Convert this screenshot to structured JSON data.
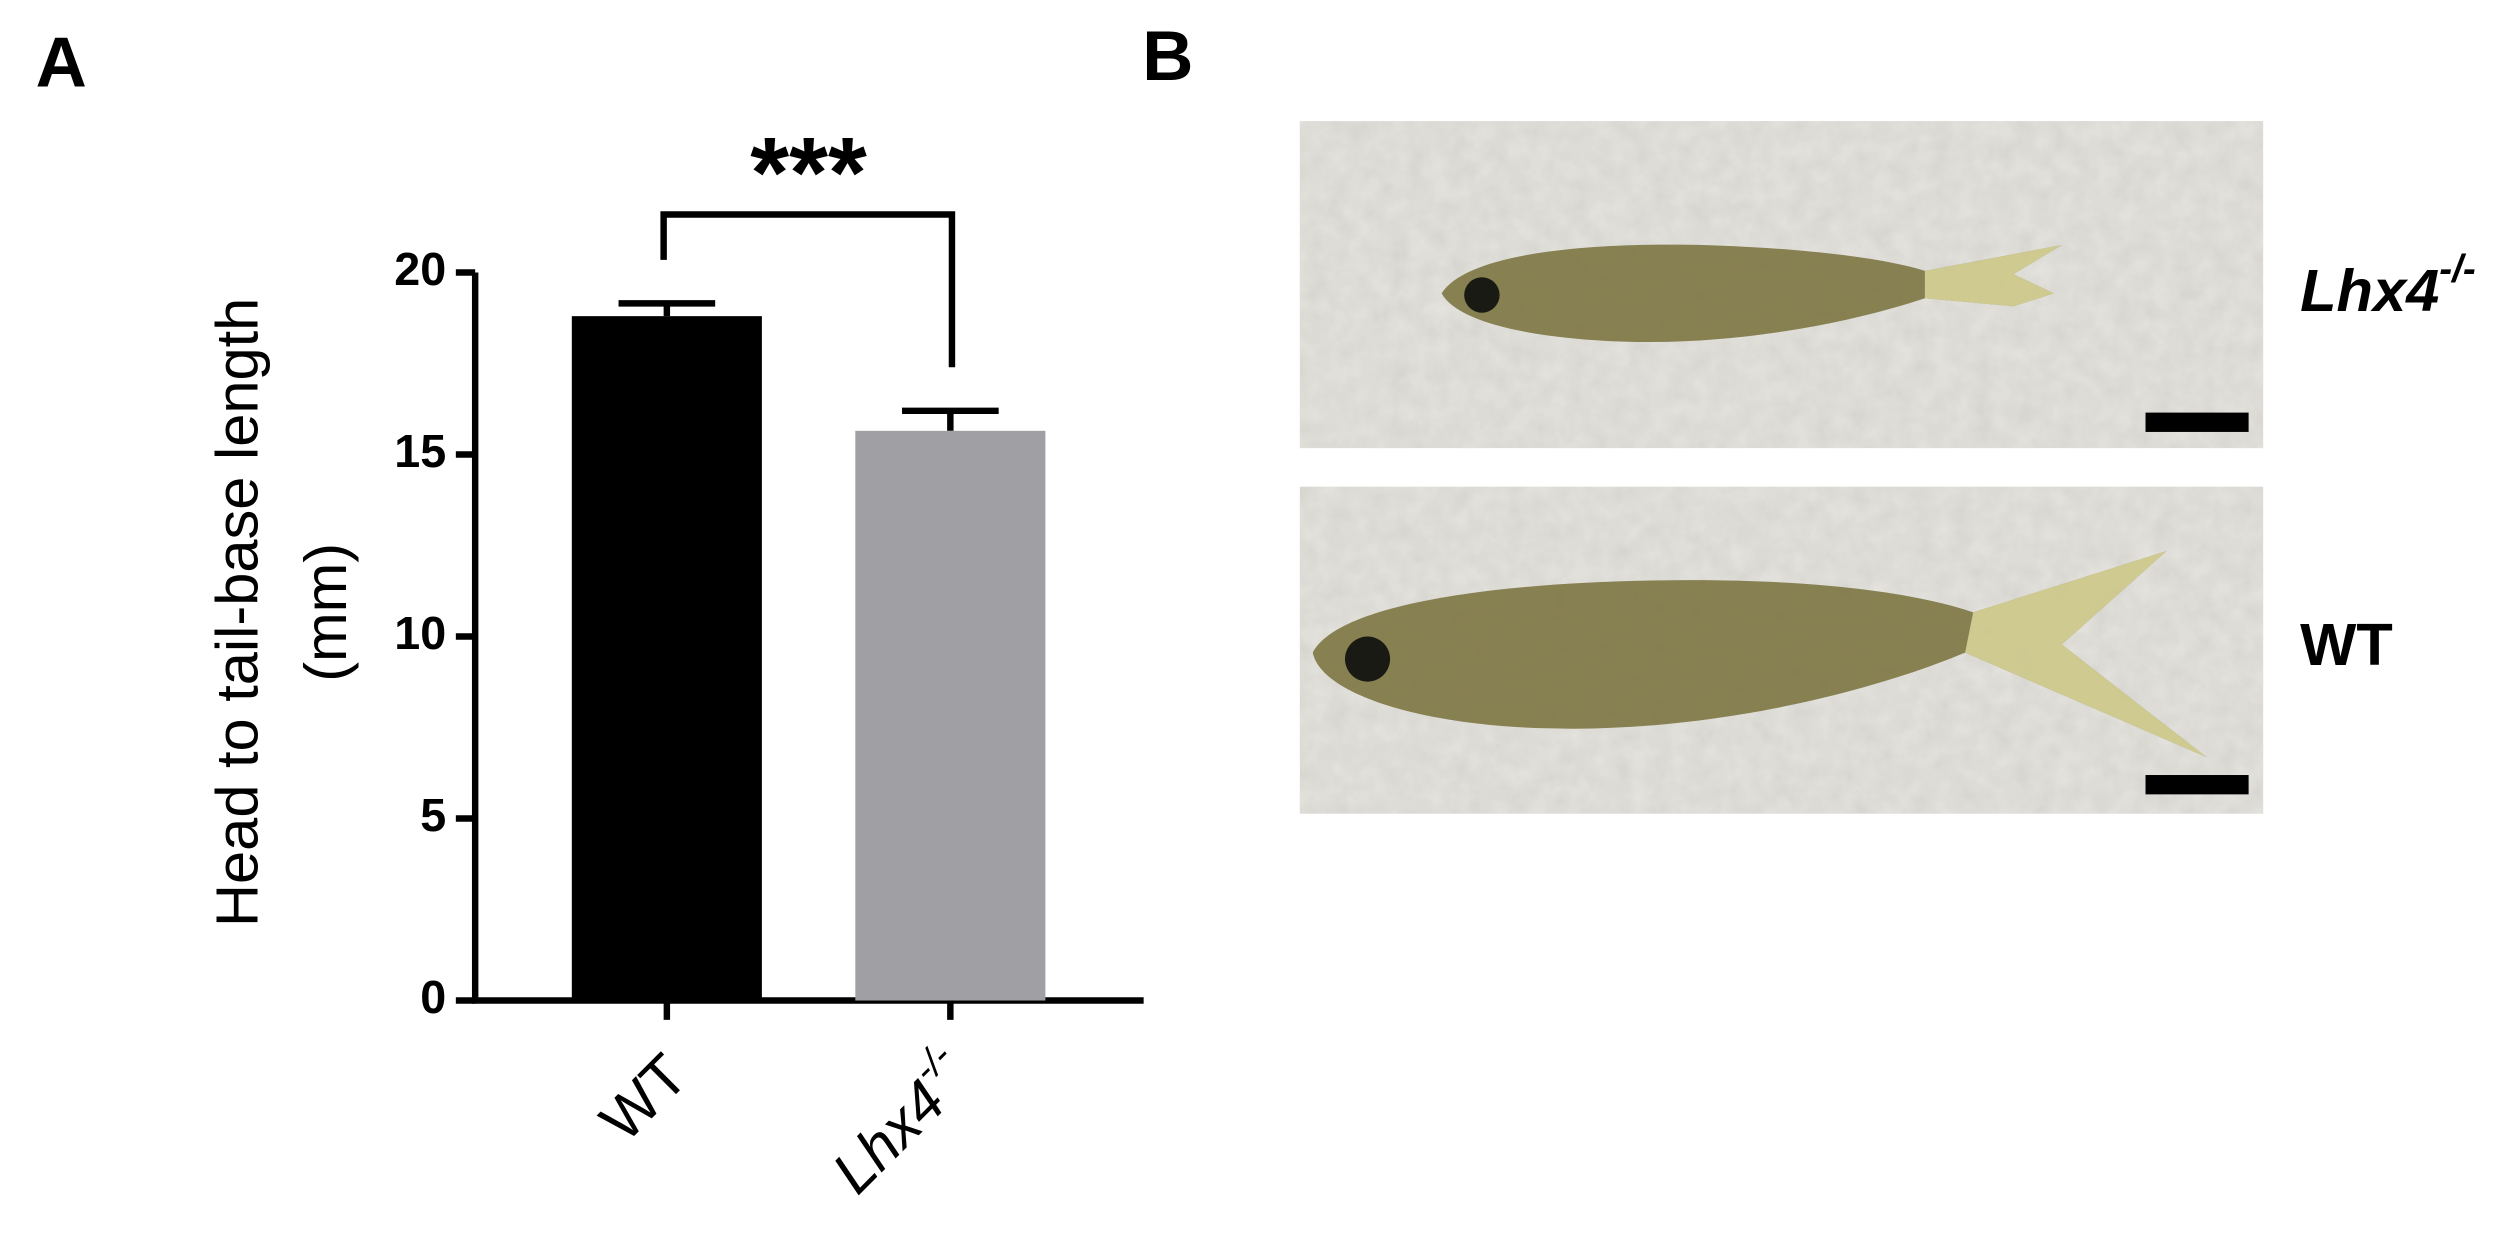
{
  "panel_labels": [
    "A",
    "B"
  ],
  "chart_data": {
    "type": "bar",
    "categories": [
      "WT",
      "Lhx4-/-"
    ],
    "values": [
      18.8,
      15.65
    ],
    "errors": [
      0.35,
      0.55
    ],
    "colors": [
      "#000000",
      "#a0a0a4"
    ],
    "ylabel": [
      "Head to tail-base length",
      "(mm)"
    ],
    "ylim": [
      0,
      20
    ],
    "yticks": [
      0,
      5,
      10,
      15,
      20
    ],
    "annotation": "***"
  },
  "images": [
    {
      "label": "Lhx4-/-"
    },
    {
      "label": "WT"
    }
  ]
}
